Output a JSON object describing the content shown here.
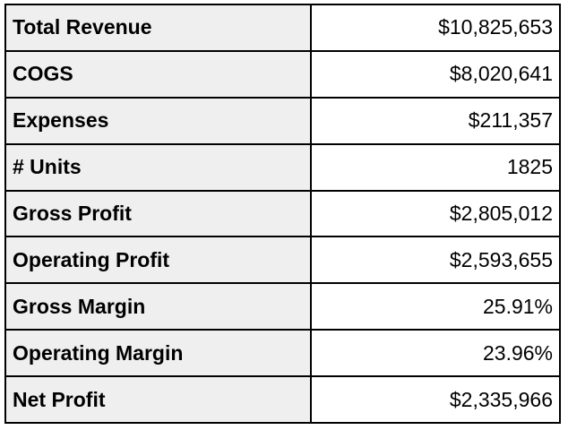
{
  "rows": [
    {
      "label": "Total Revenue",
      "value": "$10,825,653"
    },
    {
      "label": "COGS",
      "value": "$8,020,641"
    },
    {
      "label": "Expenses",
      "value": "$211,357"
    },
    {
      "label": "# Units",
      "value": "1825"
    },
    {
      "label": "Gross Profit",
      "value": "$2,805,012"
    },
    {
      "label": "Operating Profit",
      "value": "$2,593,655"
    },
    {
      "label": "Gross Margin",
      "value": "25.91%"
    },
    {
      "label": "Operating Margin",
      "value": "23.96%"
    },
    {
      "label": "Net Profit",
      "value": "$2,335,966"
    }
  ]
}
